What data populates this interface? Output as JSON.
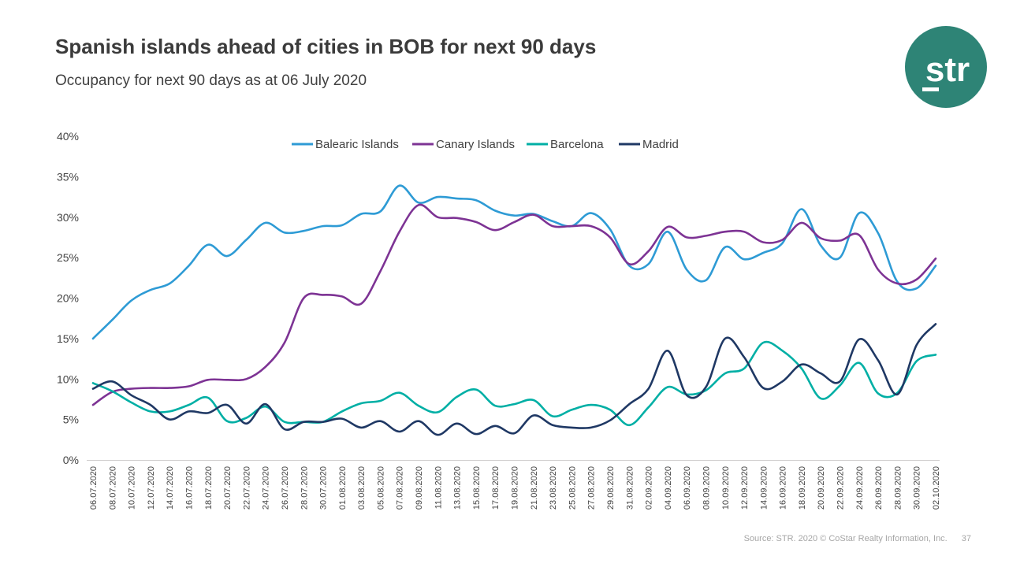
{
  "header": {
    "title": "Spanish islands ahead of cities in BOB for next 90 days",
    "subtitle": "Occupancy for next 90 days as at 06 July 2020"
  },
  "logo": {
    "text": "str",
    "circle_color": "#2E8476",
    "text_color": "#FFFFFF"
  },
  "footer": {
    "source": "Source: STR. 2020 © CoStar Realty Information, Inc.",
    "page_number": "37"
  },
  "chart_data": {
    "type": "line",
    "title": "Occupancy for next 90 days as at 06 July 2020",
    "xlabel": "",
    "ylabel": "",
    "ylim": [
      0,
      40
    ],
    "yticks": [
      0,
      5,
      10,
      15,
      20,
      25,
      30,
      35,
      40
    ],
    "ytick_suffix": "%",
    "grid": false,
    "legend_position": "top-center",
    "x": [
      "06.07.2020",
      "08.07.2020",
      "10.07.2020",
      "12.07.2020",
      "14.07.2020",
      "16.07.2020",
      "18.07.2020",
      "20.07.2020",
      "22.07.2020",
      "24.07.2020",
      "26.07.2020",
      "28.07.2020",
      "30.07.2020",
      "01.08.2020",
      "03.08.2020",
      "05.08.2020",
      "07.08.2020",
      "09.08.2020",
      "11.08.2020",
      "13.08.2020",
      "15.08.2020",
      "17.08.2020",
      "19.08.2020",
      "21.08.2020",
      "23.08.2020",
      "25.08.2020",
      "27.08.2020",
      "29.08.2020",
      "31.08.2020",
      "02.09.2020",
      "04.09.2020",
      "06.09.2020",
      "08.09.2020",
      "10.09.2020",
      "12.09.2020",
      "14.09.2020",
      "16.09.2020",
      "18.09.2020",
      "20.09.2020",
      "22.09.2020",
      "24.09.2020",
      "26.09.2020",
      "28.09.2020",
      "30.09.2020",
      "02.10.2020"
    ],
    "series": [
      {
        "name": "Balearic Islands",
        "color": "#2E9BD5",
        "values": [
          15.0,
          17.3,
          19.7,
          21.0,
          21.8,
          24.0,
          26.6,
          25.2,
          27.2,
          29.3,
          28.1,
          28.3,
          28.9,
          29.0,
          30.4,
          30.7,
          33.9,
          31.8,
          32.5,
          32.3,
          32.1,
          30.8,
          30.2,
          30.4,
          29.5,
          28.9,
          30.5,
          28.5,
          24.0,
          24.2,
          28.2,
          23.5,
          22.2,
          26.3,
          24.8,
          25.6,
          26.8,
          31.0,
          26.5,
          25.0,
          30.5,
          28.0,
          22.0,
          21.2,
          24.0
        ]
      },
      {
        "name": "Canary Islands",
        "color": "#7D3394",
        "values": [
          6.8,
          8.4,
          8.8,
          8.9,
          8.9,
          9.1,
          9.9,
          9.9,
          10.0,
          11.5,
          14.5,
          20.0,
          20.4,
          20.2,
          19.3,
          23.3,
          28.2,
          31.5,
          30.0,
          29.9,
          29.4,
          28.4,
          29.4,
          30.3,
          28.9,
          28.9,
          28.9,
          27.5,
          24.2,
          25.8,
          28.8,
          27.5,
          27.7,
          28.2,
          28.2,
          26.9,
          27.2,
          29.3,
          27.4,
          27.1,
          27.8,
          23.5,
          21.8,
          22.3,
          24.9
        ]
      },
      {
        "name": "Barcelona",
        "color": "#00AFA5",
        "values": [
          9.5,
          8.5,
          7.1,
          6.0,
          6.0,
          6.8,
          7.7,
          4.8,
          5.2,
          6.6,
          4.7,
          4.7,
          4.7,
          6.0,
          7.0,
          7.3,
          8.3,
          6.7,
          5.9,
          7.8,
          8.7,
          6.7,
          6.9,
          7.4,
          5.4,
          6.2,
          6.8,
          6.2,
          4.3,
          6.5,
          9.0,
          8.1,
          8.6,
          10.7,
          11.3,
          14.5,
          13.5,
          11.3,
          7.6,
          9.2,
          12.0,
          8.2,
          8.3,
          12.2,
          13.0
        ]
      },
      {
        "name": "Madrid",
        "color": "#1F3864",
        "values": [
          8.8,
          9.7,
          8.0,
          6.8,
          5.0,
          6.0,
          5.8,
          6.8,
          4.5,
          6.9,
          3.8,
          4.7,
          4.7,
          5.1,
          4.0,
          4.8,
          3.5,
          4.8,
          3.1,
          4.5,
          3.2,
          4.2,
          3.3,
          5.5,
          4.3,
          4.0,
          4.0,
          4.9,
          6.9,
          8.8,
          13.5,
          8.0,
          9.0,
          15.0,
          12.7,
          8.9,
          9.7,
          11.8,
          10.7,
          9.7,
          14.9,
          12.3,
          8.1,
          14.2,
          16.8
        ]
      }
    ]
  }
}
